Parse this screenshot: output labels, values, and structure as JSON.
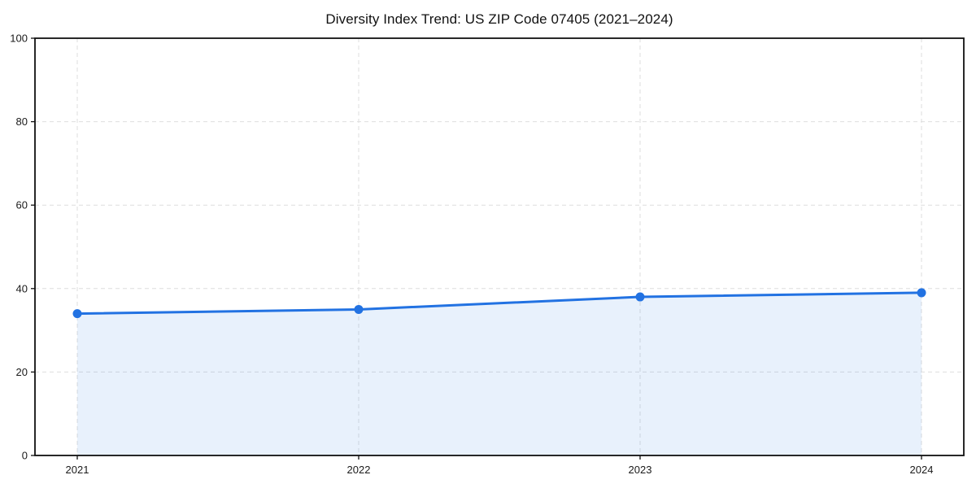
{
  "title": "Diversity Index Trend: US ZIP Code 07405 (2021–2024)",
  "colors": {
    "line": "#2272e2",
    "marker": "#2272e2",
    "area_fill": "#2272e2",
    "area_opacity": 0.1,
    "grid": "#dedede",
    "frame": "#111111",
    "tick": "#111111",
    "tick_text": "#1a1a1a",
    "background": "#ffffff"
  },
  "chart_data": {
    "type": "area",
    "title": "Diversity Index Trend: US ZIP Code 07405 (2021–2024)",
    "categories": [
      "2021",
      "2022",
      "2023",
      "2024"
    ],
    "series": [
      {
        "name": "Diversity Index",
        "values": [
          34,
          35,
          38,
          39
        ]
      }
    ],
    "values": [
      34,
      35,
      38,
      39
    ],
    "xlabel": "",
    "ylabel": "",
    "ylim": [
      0,
      100
    ],
    "yticks": [
      0,
      20,
      40,
      60,
      80,
      100
    ],
    "grid": true,
    "grid_style": "dashed",
    "legend": false,
    "marker": "circle"
  }
}
